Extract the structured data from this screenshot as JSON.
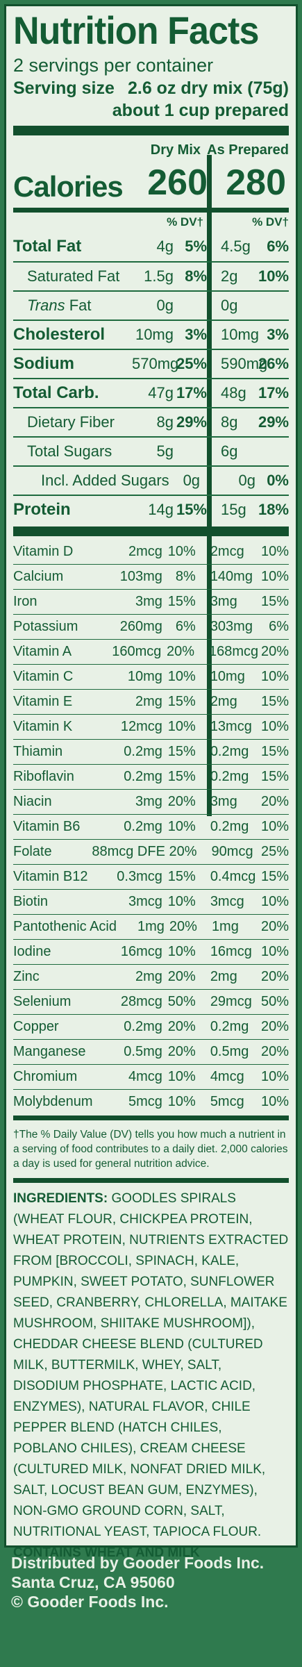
{
  "title": "Nutrition Facts",
  "servings_per_container": "2 servings per container",
  "serving_size_label": "Serving size",
  "serving_size_value": "2.6 oz dry mix (75g)",
  "serving_size_prepared": "about 1 cup prepared",
  "column_headers": {
    "dry": "Dry Mix",
    "prepared": "As Prepared"
  },
  "calories": {
    "label": "Calories",
    "dry": "260",
    "prepared": "280"
  },
  "dv_header": "% DV†",
  "nutrients": [
    {
      "name": "Total Fat",
      "amt1": "4g",
      "pct1": "5%",
      "amt2": "4.5g",
      "pct2": "6%"
    },
    {
      "name": "Saturated Fat",
      "amt1": "1.5g",
      "pct1": "8%",
      "amt2": "2g",
      "pct2": "10%"
    },
    {
      "name": "Trans Fat",
      "amt1": "0g",
      "pct1": "",
      "amt2": "0g",
      "pct2": ""
    },
    {
      "name": "Cholesterol",
      "amt1": "10mg",
      "pct1": "3%",
      "amt2": "10mg",
      "pct2": "3%"
    },
    {
      "name": "Sodium",
      "amt1": "570mg",
      "pct1": "25%",
      "amt2": "590mg",
      "pct2": "26%"
    },
    {
      "name": "Total Carb.",
      "amt1": "47g",
      "pct1": "17%",
      "amt2": "48g",
      "pct2": "17%"
    },
    {
      "name": "Dietary Fiber",
      "amt1": "8g",
      "pct1": "29%",
      "amt2": "8g",
      "pct2": "29%"
    },
    {
      "name": "Total Sugars",
      "amt1": "5g",
      "pct1": "",
      "amt2": "6g",
      "pct2": ""
    },
    {
      "name": "Incl. Added Sugars",
      "amt1": "0g",
      "pct1": "",
      "amt2": "0g",
      "pct2": "0%"
    },
    {
      "name": "Protein",
      "amt1": "14g",
      "pct1": "15%",
      "amt2": "15g",
      "pct2": "18%"
    }
  ],
  "vitamins": [
    {
      "name": "Vitamin D",
      "amt1": "2mcg",
      "pct1": "10%",
      "amt2": "2mcg",
      "pct2": "10%"
    },
    {
      "name": "Calcium",
      "amt1": "103mg",
      "pct1": "8%",
      "amt2": "140mg",
      "pct2": "10%"
    },
    {
      "name": "Iron",
      "amt1": "3mg",
      "pct1": "15%",
      "amt2": "3mg",
      "pct2": "15%"
    },
    {
      "name": "Potassium",
      "amt1": "260mg",
      "pct1": "6%",
      "amt2": "303mg",
      "pct2": "6%"
    },
    {
      "name": "Vitamin A",
      "amt1": "160mcg",
      "pct1": "20%",
      "amt2": "168mcg",
      "pct2": "20%"
    },
    {
      "name": "Vitamin C",
      "amt1": "10mg",
      "pct1": "10%",
      "amt2": "10mg",
      "pct2": "10%"
    },
    {
      "name": "Vitamin E",
      "amt1": "2mg",
      "pct1": "15%",
      "amt2": "2mg",
      "pct2": "15%"
    },
    {
      "name": "Vitamin K",
      "amt1": "12mcg",
      "pct1": "10%",
      "amt2": "13mcg",
      "pct2": "10%"
    },
    {
      "name": "Thiamin",
      "amt1": "0.2mg",
      "pct1": "15%",
      "amt2": "0.2mg",
      "pct2": "15%"
    },
    {
      "name": "Riboflavin",
      "amt1": "0.2mg",
      "pct1": "15%",
      "amt2": "0.2mg",
      "pct2": "15%"
    },
    {
      "name": "Niacin",
      "amt1": "3mg",
      "pct1": "20%",
      "amt2": "3mg",
      "pct2": "20%"
    },
    {
      "name": "Vitamin B6",
      "amt1": "0.2mg",
      "pct1": "10%",
      "amt2": "0.2mg",
      "pct2": "10%"
    },
    {
      "name": "Folate",
      "amt1": "88mcg DFE",
      "pct1": "20%",
      "amt2": "90mcg",
      "pct2": "25%"
    },
    {
      "name": "Vitamin B12",
      "amt1": "0.3mcg",
      "pct1": "15%",
      "amt2": "0.4mcg",
      "pct2": "15%"
    },
    {
      "name": "Biotin",
      "amt1": "3mcg",
      "pct1": "10%",
      "amt2": "3mcg",
      "pct2": "10%"
    },
    {
      "name": "Pantothenic Acid",
      "amt1": "1mg",
      "pct1": "20%",
      "amt2": "1mg",
      "pct2": "20%"
    },
    {
      "name": "Iodine",
      "amt1": "16mcg",
      "pct1": "10%",
      "amt2": "16mcg",
      "pct2": "10%"
    },
    {
      "name": "Zinc",
      "amt1": "2mg",
      "pct1": "20%",
      "amt2": "2mg",
      "pct2": "20%"
    },
    {
      "name": "Selenium",
      "amt1": "28mcg",
      "pct1": "50%",
      "amt2": "29mcg",
      "pct2": "50%"
    },
    {
      "name": "Copper",
      "amt1": "0.2mg",
      "pct1": "20%",
      "amt2": "0.2mg",
      "pct2": "20%"
    },
    {
      "name": "Manganese",
      "amt1": "0.5mg",
      "pct1": "20%",
      "amt2": "0.5mg",
      "pct2": "20%"
    },
    {
      "name": "Chromium",
      "amt1": "4mcg",
      "pct1": "10%",
      "amt2": "4mcg",
      "pct2": "10%"
    },
    {
      "name": "Molybdenum",
      "amt1": "5mcg",
      "pct1": "10%",
      "amt2": "5mcg",
      "pct2": "10%"
    }
  ],
  "footnote": "†The % Daily Value (DV) tells you how much a nutrient in a serving of  food contributes to a daily diet. 2,000 calories a day is used for general nutrition advice.",
  "ingredients_label": "INGREDIENTS:",
  "ingredients_text": "GOODLES SPIRALS (WHEAT FLOUR, CHICKPEA PROTEIN, WHEAT PROTEIN, NUTRIENTS EXTRACTED FROM [BROCCOLI, SPINACH, KALE, PUMPKIN, SWEET POTATO, SUNFLOWER SEED, CRANBERRY, CHLORELLA, MAITAKE MUSHROOM, SHIITAKE MUSHROOM]), CHEDDAR CHEESE BLEND (CULTURED MILK, BUTTERMILK, WHEY, SALT, DISODIUM PHOSPHATE, LACTIC ACID, ENZYMES), NATURAL FLAVOR, CHILE PEPPER BLEND (HATCH CHILES, POBLANO CHILES), CREAM CHEESE (CULTURED MILK, NONFAT DRIED MILK, SALT, LOCUST BEAN GUM, ENZYMES), NON-GMO GROUND CORN, SALT, NUTRITIONAL YEAST, TAPIOCA FLOUR.",
  "contains": "CONTAINS WHEAT AND MILK",
  "distributor": {
    "line1": "Distributed by Gooder Foods Inc.",
    "line2": "Santa Cruz, CA 95060",
    "line3": "© Gooder Foods Inc."
  },
  "colors": {
    "background": "#2f7a4e",
    "panel": "#e8f1e6",
    "ink": "#145c34"
  }
}
